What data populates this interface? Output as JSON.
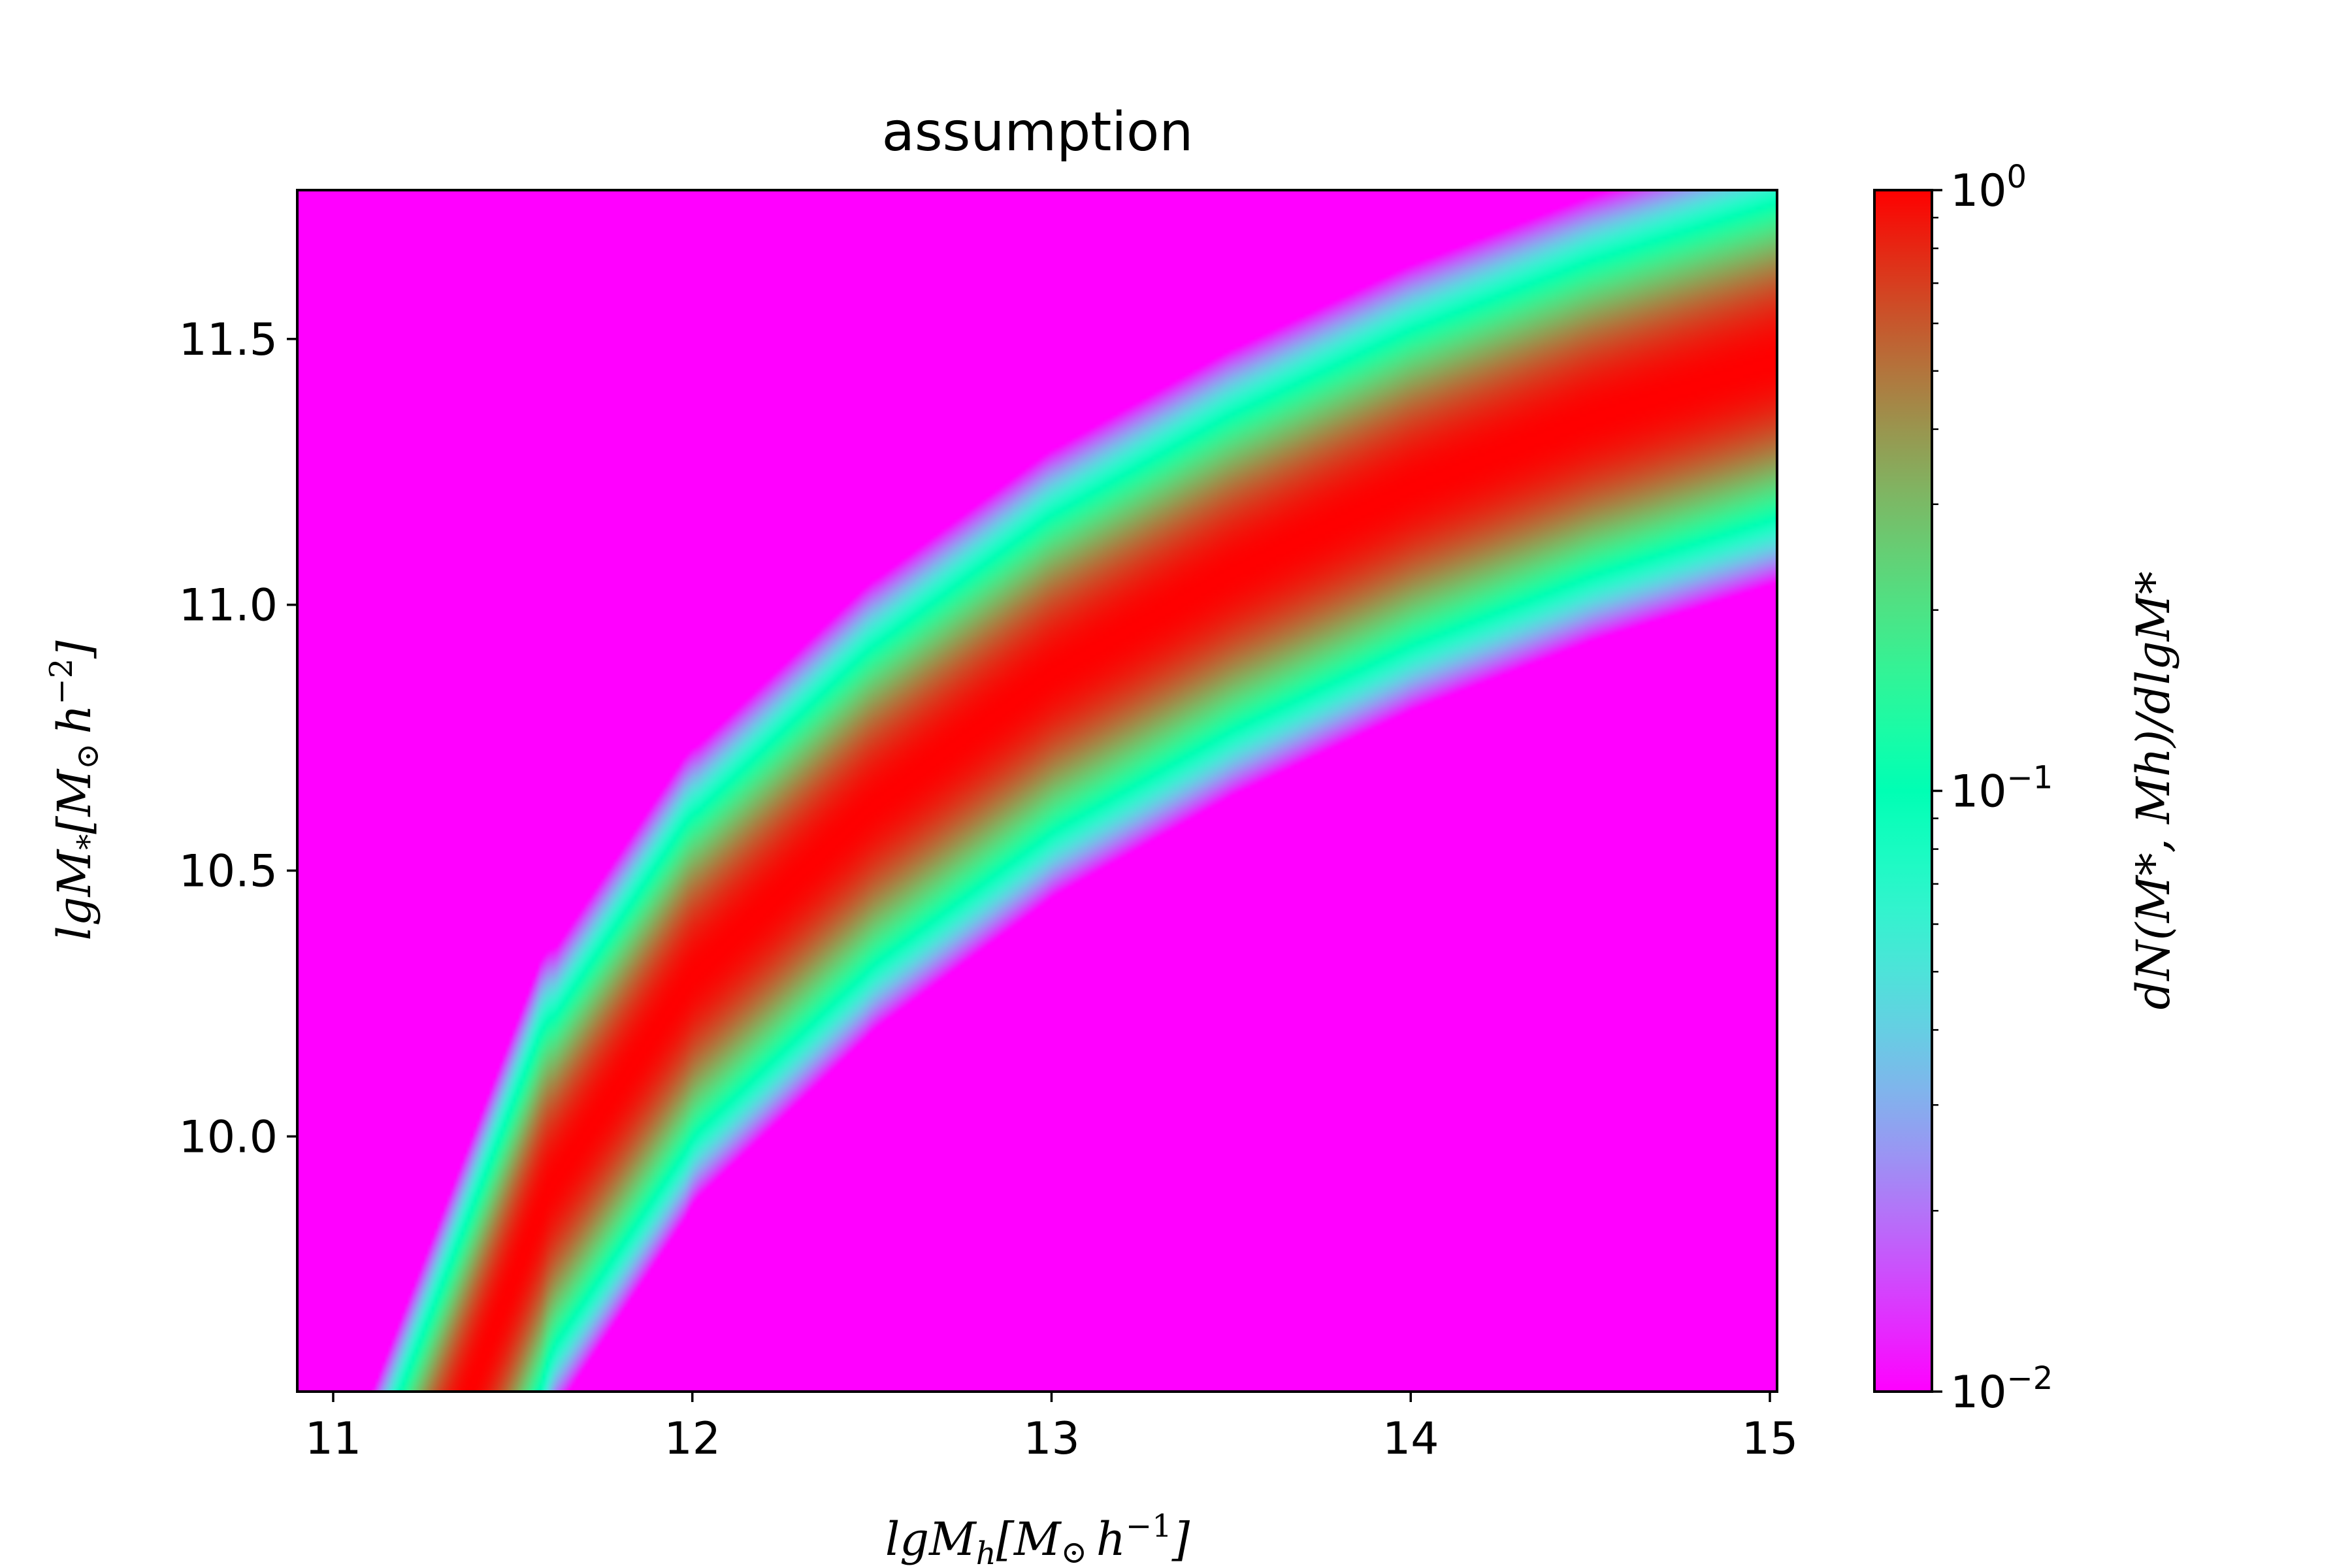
{
  "chart_data": {
    "type": "heatmap",
    "title": "assumption",
    "xlabel": {
      "base": "lgM",
      "sub": "h",
      "bracket": "[M",
      "sun": "⊙",
      "h": "h",
      "sup": "−1",
      "close": "]"
    },
    "ylabel": {
      "base": "lgM",
      "sub": "*",
      "bracket": "[M",
      "sun": "⊙",
      "h": "h",
      "sup": "−2",
      "close": "]"
    },
    "xlim": [
      10.9,
      15.02
    ],
    "ylim": [
      9.52,
      11.78
    ],
    "xticks": [
      11,
      12,
      13,
      14,
      15
    ],
    "xtick_labels": [
      "11",
      "12",
      "13",
      "14",
      "15"
    ],
    "yticks": [
      10.0,
      10.5,
      11.0,
      11.5
    ],
    "ytick_labels": [
      "10.0",
      "10.5",
      "11.0",
      "11.5"
    ],
    "colormap": "rainbow",
    "colorbar": {
      "scale": "log",
      "range": [
        0.01,
        1.0
      ],
      "label": "dN(M*, Mh)/dlgM*",
      "ticks": [
        {
          "value": 1.0,
          "base": "10",
          "exp": "0"
        },
        {
          "value": 0.1,
          "base": "10",
          "exp": "−1"
        },
        {
          "value": 0.01,
          "base": "10",
          "exp": "−2"
        }
      ]
    },
    "band_ridge": [
      {
        "x": 11.38,
        "y": 9.52
      },
      {
        "x": 11.6,
        "y": 9.9
      },
      {
        "x": 12.0,
        "y": 10.3
      },
      {
        "x": 12.5,
        "y": 10.62
      },
      {
        "x": 13.0,
        "y": 10.87
      },
      {
        "x": 13.5,
        "y": 11.06
      },
      {
        "x": 14.0,
        "y": 11.22
      },
      {
        "x": 14.5,
        "y": 11.35
      },
      {
        "x": 15.02,
        "y": 11.46
      }
    ],
    "band_halfwidth_dex": 0.3,
    "colors": {
      "background": "#8000ff",
      "peak": "#ff0000"
    }
  }
}
